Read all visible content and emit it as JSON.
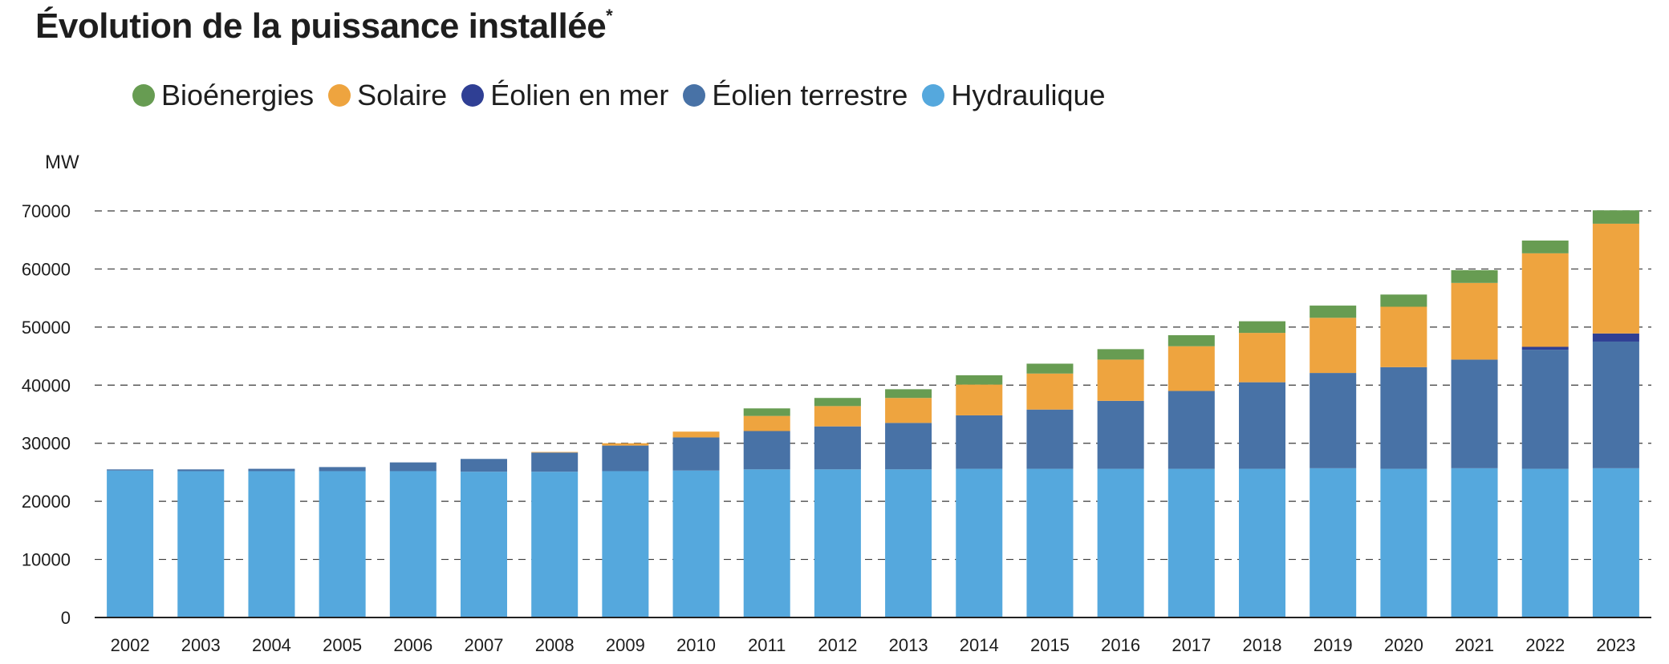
{
  "title": "Évolution de la puissance installée",
  "title_mark": "*",
  "chart_data": {
    "type": "bar",
    "stacked": true,
    "title": "Évolution de la puissance installée*",
    "ylabel": "MW",
    "xlabel": "",
    "ylim": [
      0,
      70000
    ],
    "yticks": [
      0,
      10000,
      20000,
      30000,
      40000,
      50000,
      60000,
      70000
    ],
    "grid": true,
    "legend_position": "top-left",
    "categories": [
      "2002",
      "2003",
      "2004",
      "2005",
      "2006",
      "2007",
      "2008",
      "2009",
      "2010",
      "2011",
      "2012",
      "2013",
      "2014",
      "2015",
      "2016",
      "2017",
      "2018",
      "2019",
      "2020",
      "2021",
      "2022",
      "2023"
    ],
    "series": [
      {
        "name": "Hydraulique",
        "color": "#55a8dd",
        "values": [
          25300,
          25200,
          25200,
          25200,
          25200,
          25100,
          25100,
          25200,
          25300,
          25500,
          25500,
          25500,
          25600,
          25600,
          25600,
          25600,
          25600,
          25700,
          25600,
          25700,
          25600,
          25700
        ]
      },
      {
        "name": "Éolien terrestre",
        "color": "#4872a6",
        "values": [
          200,
          300,
          400,
          700,
          1500,
          2200,
          3300,
          4400,
          5700,
          6600,
          7400,
          8000,
          9200,
          10200,
          11700,
          13400,
          14900,
          16400,
          17500,
          18700,
          20500,
          21800
        ]
      },
      {
        "name": "Éolien en mer",
        "color": "#2f3f94",
        "values": [
          0,
          0,
          0,
          0,
          0,
          0,
          0,
          0,
          0,
          0,
          0,
          0,
          0,
          0,
          0,
          0,
          0,
          0,
          0,
          0,
          500,
          1400
        ]
      },
      {
        "name": "Solaire",
        "color": "#eea43f",
        "values": [
          0,
          0,
          0,
          0,
          0,
          0,
          100,
          400,
          1000,
          2600,
          3500,
          4300,
          5300,
          6200,
          7100,
          7700,
          8500,
          9500,
          10400,
          13200,
          16100,
          18900
        ]
      },
      {
        "name": "Bioénergies",
        "color": "#679c52",
        "values": [
          0,
          0,
          0,
          0,
          0,
          0,
          0,
          0,
          0,
          1300,
          1400,
          1500,
          1600,
          1700,
          1800,
          1900,
          2000,
          2100,
          2100,
          2200,
          2200,
          2300
        ]
      }
    ],
    "legend_order": [
      "Bioénergies",
      "Solaire",
      "Éolien en mer",
      "Éolien terrestre",
      "Hydraulique"
    ]
  }
}
